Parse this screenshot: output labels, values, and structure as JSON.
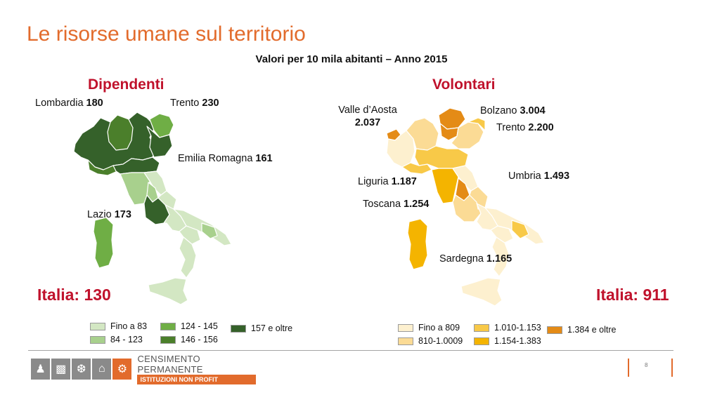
{
  "title": "Le risorse umane sul territorio",
  "subtitle": "Valori per 10 mila abitanti – Anno 2015",
  "colors": {
    "title": "#e26b2c",
    "heading": "#c0122c",
    "green_scale": [
      "#d3e7c3",
      "#a8d08d",
      "#6fae45",
      "#4b7f2b",
      "#35612a"
    ],
    "orange_scale": [
      "#fdf0cf",
      "#fbdb95",
      "#f8c948",
      "#f4b400",
      "#e48b16"
    ]
  },
  "dipendenti": {
    "heading": "Dipendenti",
    "callouts": {
      "lombardia": {
        "name": "Lombardia",
        "value": "180"
      },
      "trento": {
        "name": "Trento",
        "value": "230"
      },
      "emilia": {
        "name": "Emilia Romagna",
        "value": "161"
      },
      "lazio": {
        "name": "Lazio",
        "value": "173"
      }
    },
    "total": "Italia: 130",
    "legend": [
      "Fino a 83",
      "84 - 123",
      "124 - 145",
      "146 - 156",
      "157 e oltre"
    ]
  },
  "volontari": {
    "heading": "Volontari",
    "callouts": {
      "valle": {
        "name": "Valle d’Aosta",
        "value": "2.037"
      },
      "bolzano": {
        "name": "Bolzano",
        "value": "3.004"
      },
      "trento": {
        "name": "Trento",
        "value": "2.200"
      },
      "liguria": {
        "name": "Liguria",
        "value": "1.187"
      },
      "umbria": {
        "name": "Umbria",
        "value": "1.493"
      },
      "toscana": {
        "name": "Toscana",
        "value": "1.254"
      },
      "sardegna": {
        "name": "Sardegna",
        "value": "1.165"
      }
    },
    "total": "Italia: 911",
    "legend": [
      "Fino a 809",
      "810-1.0009",
      "1.010-1.153",
      "1.154-1.383",
      "1.384 e oltre"
    ]
  },
  "footer": {
    "logo_main": "CENSIMENTO PERMANENTE",
    "logo_sub": "ISTITUZIONI NON PROFIT",
    "page_number": "8"
  }
}
